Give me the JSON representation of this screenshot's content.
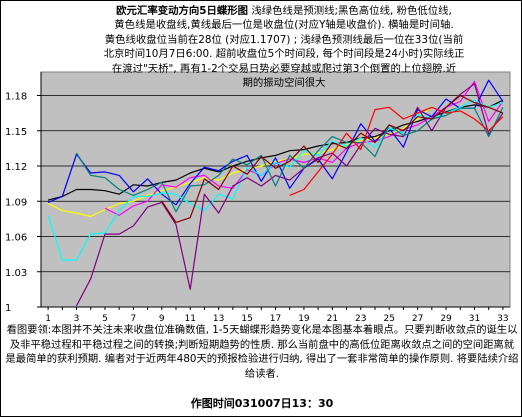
{
  "annotation": {
    "title": "欧元汇率变动方向5日蝶形图",
    "lines": [
      "浅绿色线是预测线;黑色高位线, 粉色低位线,",
      "黄色线是收盘线,黄线最后一位是收盘位(对应Y轴是收盘价). 横轴是时间轴.",
      "黄色线收盘位当前在28位 (对应1.1707) ; 浅绿色预测线最后一位在33位(当前",
      "北京时间10月7日6:00. 超前收盘位5个时间段, 每个时间段是24小时)实际线正",
      "在渡过\"天桥\", 再有1-2个交易日势必要穿越或爬过第3个倒置的上位翅膀.近",
      "期的振动空间很大"
    ]
  },
  "caption": {
    "text": "看图要领:本图并不关注未来收盘位准确数值, 1-5天蝴蝶形趋势变化是本图基本着眼点。只要判断收敛点的诞生以及非平稳过程和平稳过程之间的转换;判断短期趋势的性质. 那么当前盘中的高低位距离收敛点之间的空间距离就是最简单的获利预期. 编者对于近两年480天的预报检验进行归纳, 得出了一套非常简单的操作原则. 将要陆续介绍给读者.",
    "time": "作图时间031007日13：30"
  },
  "chart_data": {
    "type": "line",
    "title": "",
    "xlabel": "",
    "ylabel": "",
    "x": [
      1,
      2,
      3,
      4,
      5,
      6,
      7,
      8,
      9,
      10,
      11,
      12,
      13,
      14,
      15,
      16,
      17,
      18,
      19,
      20,
      21,
      22,
      23,
      24,
      25,
      26,
      27,
      28,
      29,
      30,
      31,
      32,
      33
    ],
    "x_tick_labels": [
      "1",
      "3",
      "5",
      "7",
      "9",
      "11",
      "13",
      "15",
      "17",
      "19",
      "21",
      "23",
      "25",
      "27",
      "29",
      "31",
      "33"
    ],
    "ylim": [
      1.0,
      1.2
    ],
    "y_ticks": [
      1.0,
      1.03,
      1.06,
      1.09,
      1.12,
      1.15,
      1.18
    ],
    "y_tick_labels": [
      "1",
      "1.03",
      "1.06",
      "1.09",
      "1.12",
      "1.15",
      "1.18"
    ],
    "plot_background": "#c0c0c0",
    "grid": true,
    "series": [
      {
        "name": "",
        "color": "#000000",
        "values": [
          1.091,
          1.094,
          1.1,
          1.1,
          1.099,
          1.096,
          1.104,
          1.103,
          1.106,
          1.108,
          1.114,
          1.118,
          1.115,
          1.12,
          1.124,
          1.127,
          1.129,
          1.133,
          1.134,
          1.137,
          1.139,
          1.14,
          1.144,
          1.145,
          1.15,
          1.155,
          1.158,
          1.162,
          1.166,
          1.17,
          1.172,
          1.17,
          1.176
        ]
      },
      {
        "name": "",
        "color": "#ffff00",
        "values": [
          1.088,
          1.082,
          1.08,
          1.077,
          1.083,
          1.088,
          1.09,
          1.095,
          1.099,
          1.102,
          1.106,
          1.11,
          1.108,
          1.114,
          1.117,
          1.12,
          1.124,
          1.126,
          1.13,
          1.131,
          1.134,
          1.138,
          1.142,
          1.144,
          1.147,
          1.152,
          1.16,
          1.1707,
          null,
          null,
          null,
          null,
          null
        ]
      },
      {
        "name": "",
        "color": "#ff00ff",
        "values": [
          null,
          null,
          null,
          null,
          1.084,
          1.078,
          1.086,
          1.09,
          1.104,
          1.102,
          1.11,
          1.112,
          1.103,
          1.101,
          1.117,
          1.112,
          1.122,
          1.126,
          1.123,
          1.127,
          1.123,
          1.135,
          1.14,
          1.141,
          1.145,
          1.151,
          1.155,
          1.162,
          1.17,
          1.175,
          1.192,
          1.158,
          1.175
        ]
      },
      {
        "name": "",
        "color": "#0000ff",
        "values": [
          1.089,
          1.094,
          1.13,
          1.114,
          1.115,
          1.112,
          1.098,
          1.109,
          1.096,
          1.087,
          1.105,
          1.119,
          1.116,
          1.124,
          1.129,
          1.107,
          1.127,
          1.101,
          1.118,
          1.126,
          1.109,
          1.132,
          1.156,
          1.141,
          1.152,
          1.136,
          1.168,
          1.162,
          1.177,
          1.169,
          1.169,
          1.193,
          1.175
        ]
      },
      {
        "name": "",
        "color": "#00ffff",
        "values": [
          1.078,
          1.04,
          1.04,
          1.062,
          1.063,
          1.082,
          1.094,
          1.094,
          1.097,
          1.096,
          1.088,
          1.082,
          1.096,
          1.092,
          1.119,
          1.112,
          1.123,
          1.119,
          1.133,
          1.129,
          1.141,
          1.137,
          1.144,
          1.136,
          1.152,
          1.148,
          1.164,
          1.16,
          1.165,
          1.17,
          1.176,
          1.17,
          1.174
        ]
      },
      {
        "name": "",
        "color": "#800080",
        "values": [
          null,
          null,
          1.001,
          1.024,
          1.062,
          1.062,
          1.069,
          1.085,
          1.089,
          1.07,
          1.015,
          1.096,
          1.08,
          1.103,
          1.11,
          1.103,
          1.112,
          1.108,
          1.118,
          1.127,
          1.131,
          1.12,
          1.138,
          1.152,
          1.147,
          1.145,
          1.17,
          1.15,
          1.17,
          1.181,
          1.19,
          1.147,
          1.165
        ]
      },
      {
        "name": "",
        "color": "#008080",
        "values": [
          null,
          null,
          1.131,
          1.112,
          1.11,
          1.1,
          1.095,
          1.1,
          1.106,
          1.081,
          1.103,
          1.104,
          1.112,
          1.126,
          1.121,
          1.129,
          1.103,
          1.129,
          1.118,
          1.133,
          1.145,
          1.14,
          1.14,
          1.128,
          1.155,
          1.146,
          1.15,
          1.16,
          1.163,
          1.169,
          1.169,
          1.145,
          1.17
        ]
      },
      {
        "name": "",
        "color": "#800000",
        "values": [
          null,
          null,
          null,
          null,
          null,
          null,
          null,
          null,
          1.09,
          1.072,
          1.076,
          1.109,
          1.1,
          1.12,
          1.113,
          1.128,
          1.118,
          1.124,
          1.137,
          1.123,
          1.14,
          1.135,
          1.148,
          1.14,
          1.155,
          1.15,
          1.162,
          1.16,
          1.17,
          1.18,
          1.174,
          1.17,
          1.165
        ]
      },
      {
        "name": "",
        "color": "#ff0000",
        "values": [
          null,
          null,
          null,
          null,
          null,
          null,
          null,
          null,
          null,
          null,
          null,
          null,
          null,
          null,
          null,
          null,
          null,
          1.095,
          1.1,
          1.115,
          1.13,
          1.148,
          1.134,
          1.168,
          1.17,
          1.16,
          1.165,
          1.17,
          1.165,
          1.167,
          1.16,
          1.15,
          1.162
        ]
      }
    ]
  }
}
